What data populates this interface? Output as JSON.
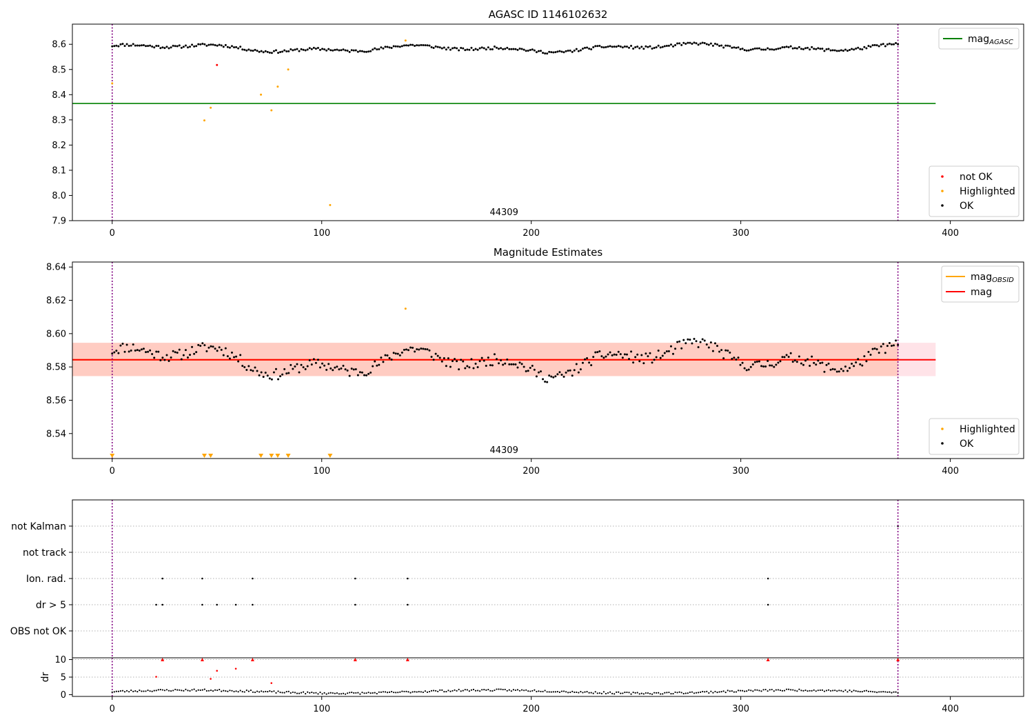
{
  "chart_data": [
    {
      "type": "scatter",
      "title": "AGASC ID 1146102632",
      "annotation": "44309",
      "xlim": [
        -19,
        435
      ],
      "ylim": [
        7.9,
        8.68
      ],
      "xticks": [
        0,
        100,
        200,
        300,
        400
      ],
      "yticks": [
        7.9,
        8.0,
        8.1,
        8.2,
        8.3,
        8.4,
        8.5,
        8.6
      ],
      "ytick_labels": [
        "7.9",
        "8.0",
        "8.1",
        "8.2",
        "8.3",
        "8.4",
        "8.5",
        "8.6"
      ],
      "obsid_bounds": [
        0,
        375
      ],
      "lines": [
        {
          "name": "mag",
          "sub": "AGASC",
          "y": 8.365,
          "x": [
            -19,
            393
          ],
          "color": "#008000"
        }
      ],
      "series": [
        {
          "name": "not OK",
          "color": "#ff0000",
          "points": [
            [
              50,
              8.518
            ]
          ]
        },
        {
          "name": "Highlighted",
          "color": "#ffa500",
          "points": [
            [
              0,
              8.445
            ],
            [
              44,
              8.298
            ],
            [
              47,
              8.348
            ],
            [
              71,
              8.4
            ],
            [
              76,
              8.338
            ],
            [
              79,
              8.432
            ],
            [
              84,
              8.5
            ],
            [
              104,
              7.962
            ],
            [
              140,
              8.615
            ]
          ]
        },
        {
          "name": "OK",
          "color": "#000000",
          "generator": {
            "n": 375,
            "x0": 0,
            "x1": 375,
            "base": 8.585,
            "amp": 0.02,
            "seed": 11
          }
        }
      ],
      "legend_lines": {
        "placement": "upper right"
      },
      "legend_points": {
        "placement": "lower right",
        "entries": [
          "not OK",
          "Highlighted",
          "OK"
        ]
      }
    },
    {
      "type": "scatter",
      "title": "Magnitude Estimates",
      "annotation": "44309",
      "xlim": [
        -19,
        435
      ],
      "ylim": [
        8.525,
        8.643
      ],
      "xticks": [
        0,
        100,
        200,
        300,
        400
      ],
      "yticks": [
        8.54,
        8.56,
        8.58,
        8.6,
        8.62,
        8.64
      ],
      "ytick_labels": [
        "8.54",
        "8.56",
        "8.58",
        "8.60",
        "8.62",
        "8.64"
      ],
      "obsid_bounds": [
        0,
        375
      ],
      "bands": [
        {
          "y0": 8.5745,
          "y1": 8.5945,
          "x": [
            -19,
            393
          ],
          "color": "#ffc0cb",
          "opacity": 0.45
        },
        {
          "y0": 8.5745,
          "y1": 8.5945,
          "x": [
            -19,
            375
          ],
          "color": "#ffa07a",
          "opacity": 0.35
        }
      ],
      "lines": [
        {
          "name": "mag",
          "sub": "OBSID",
          "y": 8.5843,
          "x": [
            -19,
            375
          ],
          "color": "#ffa500"
        },
        {
          "name": "mag",
          "sub": "",
          "y": 8.5843,
          "x": [
            -19,
            393
          ],
          "color": "#ff0000"
        }
      ],
      "series": [
        {
          "name": "Highlighted",
          "color": "#ffa500",
          "points": [
            [
              140,
              8.615
            ]
          ]
        },
        {
          "name": "OK",
          "color": "#000000",
          "generator": {
            "n": 375,
            "x0": 0,
            "x1": 375,
            "base": 8.584,
            "amp": 0.012,
            "seed": 11
          }
        }
      ],
      "markers": {
        "color": "#ffa500",
        "x": [
          0,
          44,
          47,
          71,
          76,
          79,
          84,
          104
        ]
      },
      "legend_lines": {
        "placement": "upper right"
      },
      "legend_points": {
        "placement": "lower right",
        "entries": [
          "Highlighted",
          "OK"
        ]
      }
    },
    {
      "type": "scatter",
      "xlim": [
        -19,
        435
      ],
      "obsid_bounds": [
        0,
        375
      ],
      "flag_categories": [
        "not Kalman",
        "not track",
        "Ion. rad.",
        "dr > 5",
        "OBS not OK"
      ],
      "flag_points": {
        "not Kalman": [
          375
        ],
        "not track": [],
        "Ion. rad.": [
          24,
          43,
          67,
          116,
          141,
          313
        ],
        "dr > 5": [
          21,
          24,
          43,
          50,
          59,
          67,
          116,
          141,
          313
        ],
        "OBS not OK": []
      }
    },
    {
      "type": "scatter",
      "xlim": [
        -19,
        435
      ],
      "ylim": [
        -0.5,
        10.5
      ],
      "ylabel": "dr",
      "xticks": [
        0,
        100,
        200,
        300,
        400
      ],
      "yticks": [
        0,
        5,
        10
      ],
      "ytick_labels": [
        "0",
        "5",
        "10"
      ],
      "obsid_bounds": [
        0,
        375
      ],
      "red_points": [
        [
          21,
          5.1
        ],
        [
          47,
          4.5
        ],
        [
          50,
          6.8
        ],
        [
          59,
          7.4
        ],
        [
          76,
          3.3
        ]
      ],
      "clipped_x": [
        24,
        43,
        67,
        116,
        141,
        313,
        375
      ],
      "generator": {
        "n": 375,
        "x0": 0,
        "x1": 375,
        "seed": 23
      }
    }
  ]
}
